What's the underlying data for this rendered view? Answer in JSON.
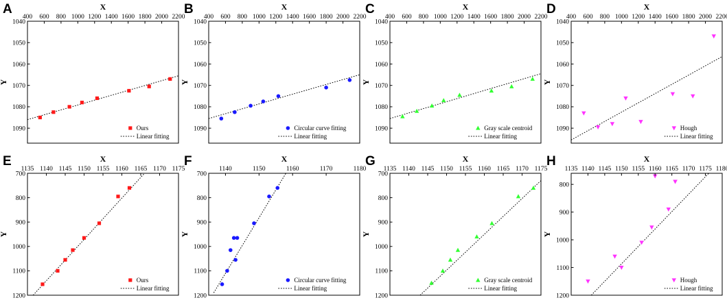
{
  "figure": {
    "xlabel": "X",
    "ylabel": "Y"
  },
  "colors": {
    "ours": "#ff1a1a",
    "circular": "#1a1aff",
    "gray": "#33ff33",
    "hough": "#ff33ff",
    "line": "#000000"
  },
  "chart_data": [
    {
      "letter": "A",
      "type": "scatter",
      "xlabel": "X",
      "ylabel": "Y",
      "xlim": [
        400,
        2200
      ],
      "ylim": [
        1040,
        1097
      ],
      "y_inverted": true,
      "xticks": [
        400,
        600,
        800,
        1000,
        1200,
        1400,
        1600,
        1800,
        2000,
        2200
      ],
      "yticks": [
        1040,
        1050,
        1060,
        1070,
        1080,
        1090
      ],
      "series": [
        {
          "name": "Ours",
          "marker": "square",
          "color": "#ff1a1a",
          "x": [
            550,
            710,
            900,
            1050,
            1230,
            1610,
            1850,
            2100
          ],
          "y": [
            1085,
            1082.5,
            1080,
            1078,
            1076,
            1072.5,
            1070.5,
            1067
          ]
        },
        {
          "name": "Linear fitting",
          "type": "line",
          "style": "dotted",
          "x": [
            400,
            2200
          ],
          "y": [
            1086,
            1065.5
          ]
        }
      ],
      "legend": [
        "Ours",
        "Linear fitting"
      ],
      "legend_position": "bottom-right"
    },
    {
      "letter": "B",
      "type": "scatter",
      "xlabel": "X",
      "ylabel": "Y",
      "xlim": [
        400,
        2200
      ],
      "ylim": [
        1040,
        1097
      ],
      "y_inverted": true,
      "xticks": [
        400,
        600,
        800,
        1000,
        1200,
        1400,
        1600,
        1800,
        2000,
        2200
      ],
      "yticks": [
        1040,
        1050,
        1060,
        1070,
        1080,
        1090
      ],
      "series": [
        {
          "name": "Circular curve fitting",
          "marker": "circle",
          "color": "#1a1aff",
          "x": [
            550,
            710,
            900,
            1050,
            1230,
            1800,
            2080
          ],
          "y": [
            1085.5,
            1082.5,
            1079.5,
            1077.5,
            1075,
            1071,
            1067.5
          ]
        },
        {
          "name": "Linear fitting",
          "type": "line",
          "style": "dotted",
          "x": [
            400,
            2200
          ],
          "y": [
            1085.5,
            1065
          ]
        }
      ],
      "legend": [
        "Circular curve fitting",
        "Linear fitting"
      ],
      "legend_position": "bottom-right"
    },
    {
      "letter": "C",
      "type": "scatter",
      "xlabel": "X",
      "ylabel": "Y",
      "xlim": [
        400,
        2200
      ],
      "ylim": [
        1040,
        1097
      ],
      "y_inverted": true,
      "xticks": [
        400,
        600,
        800,
        1000,
        1200,
        1400,
        1600,
        1800,
        2000,
        2200
      ],
      "yticks": [
        1040,
        1050,
        1060,
        1070,
        1080,
        1090
      ],
      "series": [
        {
          "name": "Gray scale centroid",
          "marker": "triangle-up",
          "color": "#33ff33",
          "x": [
            550,
            720,
            900,
            1040,
            1230,
            1610,
            1850,
            2100
          ],
          "y": [
            1084.5,
            1082,
            1079.5,
            1077,
            1074.5,
            1072.5,
            1070.5,
            1067
          ]
        },
        {
          "name": "Linear fitting",
          "type": "line",
          "style": "dotted",
          "x": [
            400,
            2200
          ],
          "y": [
            1085.5,
            1064.5
          ]
        }
      ],
      "legend": [
        "Gray scale centroid",
        "Linear fitting"
      ],
      "legend_position": "bottom-right"
    },
    {
      "letter": "D",
      "type": "scatter",
      "xlabel": "X",
      "ylabel": "Y",
      "xlim": [
        400,
        2200
      ],
      "ylim": [
        1040,
        1097
      ],
      "y_inverted": true,
      "xticks": [
        400,
        600,
        800,
        1000,
        1200,
        1400,
        1600,
        1800,
        2000,
        2200
      ],
      "yticks": [
        1040,
        1050,
        1060,
        1070,
        1080,
        1090
      ],
      "series": [
        {
          "name": "Hough",
          "marker": "triangle-down",
          "color": "#ff33ff",
          "x": [
            550,
            720,
            890,
            1050,
            1230,
            1610,
            1850,
            2100
          ],
          "y": [
            1083,
            1089.5,
            1088,
            1076,
            1087,
            1074,
            1075,
            1047
          ]
        },
        {
          "name": "Linear fitting",
          "type": "line",
          "style": "dotted",
          "x": [
            400,
            2200
          ],
          "y": [
            1095.5,
            1056.5
          ]
        }
      ],
      "legend": [
        "Hough",
        "Linear fitting"
      ],
      "legend_position": "bottom-right"
    },
    {
      "letter": "E",
      "type": "scatter",
      "xlabel": "X",
      "ylabel": "Y",
      "xlim": [
        1135,
        1175
      ],
      "ylim": [
        700,
        1200
      ],
      "y_inverted": true,
      "xticks": [
        1135,
        1140,
        1145,
        1150,
        1155,
        1160,
        1165,
        1170,
        1175
      ],
      "yticks": [
        700,
        800,
        900,
        1000,
        1100,
        1200
      ],
      "series": [
        {
          "name": "Ours",
          "marker": "square",
          "color": "#ff1a1a",
          "x": [
            1139,
            1143,
            1145,
            1147,
            1150,
            1154,
            1159,
            1162
          ],
          "y": [
            1155,
            1100,
            1055,
            1015,
            965,
            905,
            795,
            760
          ]
        },
        {
          "name": "Linear fitting",
          "type": "line",
          "style": "dotted",
          "x": [
            1136.5,
            1166
          ],
          "y": [
            1200,
            700
          ]
        }
      ],
      "legend": [
        "Ours",
        "Linear fitting"
      ],
      "legend_position": "bottom-right"
    },
    {
      "letter": "F",
      "type": "scatter",
      "xlabel": "X",
      "ylabel": "Y",
      "xlim": [
        1135,
        1180
      ],
      "ylim": [
        700,
        1200
      ],
      "y_inverted": true,
      "xticks": [
        1140,
        1150,
        1160,
        1170,
        1180
      ],
      "yticks": [
        700,
        800,
        900,
        1000,
        1100,
        1200
      ],
      "series": [
        {
          "name": "Circular curve fitting",
          "marker": "circle",
          "color": "#1a1aff",
          "x": [
            1139,
            1140.5,
            1141.5,
            1142.5,
            1143,
            1143.5,
            1148.5,
            1153,
            1155.5
          ],
          "y": [
            1155,
            1100,
            1015,
            965,
            1055,
            965,
            905,
            795,
            760
          ]
        },
        {
          "name": "Linear fitting",
          "type": "line",
          "style": "dotted",
          "x": [
            1136.5,
            1158
          ],
          "y": [
            1190,
            700
          ]
        }
      ],
      "legend": [
        "Circular curve fitting",
        "Linear fitting"
      ],
      "legend_position": "bottom-right"
    },
    {
      "letter": "G",
      "type": "scatter",
      "xlabel": "X",
      "ylabel": "Y",
      "xlim": [
        1135,
        1175
      ],
      "ylim": [
        700,
        1200
      ],
      "y_inverted": true,
      "xticks": [
        1135,
        1140,
        1145,
        1150,
        1155,
        1160,
        1165,
        1170,
        1175
      ],
      "yticks": [
        700,
        800,
        900,
        1000,
        1100,
        1200
      ],
      "series": [
        {
          "name": "Gray scale centroid",
          "marker": "triangle-up",
          "color": "#33ff33",
          "x": [
            1146,
            1149,
            1151,
            1153,
            1158,
            1162,
            1169,
            1173
          ],
          "y": [
            1150,
            1100,
            1055,
            1015,
            960,
            905,
            795,
            760
          ]
        },
        {
          "name": "Linear fitting",
          "type": "line",
          "style": "dotted",
          "x": [
            1143,
            1175
          ],
          "y": [
            1200,
            730
          ]
        }
      ],
      "legend": [
        "Gray scale centroid",
        "Linear fitting"
      ],
      "legend_position": "bottom-right"
    },
    {
      "letter": "H",
      "type": "scatter",
      "xlabel": "X",
      "ylabel": "Y",
      "xlim": [
        1135,
        1180
      ],
      "ylim": [
        760,
        1200
      ],
      "y_inverted": true,
      "xticks": [
        1135,
        1140,
        1145,
        1150,
        1155,
        1160,
        1165,
        1170,
        1175,
        1180
      ],
      "yticks": [
        800,
        900,
        1000,
        1100,
        1200
      ],
      "series": [
        {
          "name": "Hough",
          "marker": "triangle-down",
          "color": "#ff33ff",
          "x": [
            1140,
            1148,
            1150,
            1156,
            1159,
            1160,
            1164,
            1166,
            1166
          ],
          "y": [
            1150,
            1060,
            1100,
            1010,
            955,
            770,
            890,
            790,
            790
          ]
        },
        {
          "name": "Linear fitting",
          "type": "line",
          "style": "dotted",
          "x": [
            1141,
            1176
          ],
          "y": [
            1200,
            760
          ]
        }
      ],
      "legend": [
        "Hough",
        "Linear fitting"
      ],
      "legend_position": "bottom-right"
    }
  ]
}
